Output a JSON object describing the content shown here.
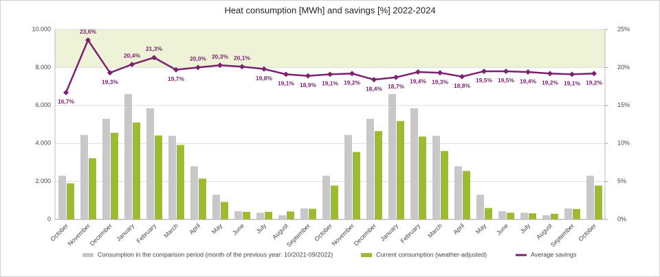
{
  "chart_data": {
    "type": "bar-line",
    "title": "Heat consumption [MWh] and savings [%] 2022-2024",
    "categories": [
      "October",
      "November",
      "December",
      "January",
      "February",
      "March",
      "April",
      "May",
      "June",
      "July",
      "August",
      "September",
      "October",
      "November",
      "December",
      "January",
      "February",
      "March",
      "April",
      "May",
      "June",
      "July",
      "August",
      "September",
      "October"
    ],
    "series": [
      {
        "name": "Consumption in the comparison period (month of the previous year: 10/2021-09/2022)",
        "color": "#c8c8c8",
        "kind": "bar",
        "values": [
          2300,
          4450,
          5300,
          6600,
          5850,
          4400,
          2800,
          1300,
          430,
          350,
          220,
          580,
          2300,
          4450,
          5300,
          6600,
          5850,
          4400,
          2800,
          1300,
          430,
          350,
          220,
          580,
          2300
        ]
      },
      {
        "name": "Current consumption (weather-adjusted)",
        "color": "#9dbb2f",
        "kind": "bar",
        "values": [
          1900,
          3220,
          4560,
          5100,
          4420,
          3920,
          2150,
          920,
          400,
          400,
          420,
          560,
          1780,
          3550,
          4650,
          5180,
          4360,
          3600,
          2550,
          600,
          350,
          320,
          300,
          550,
          1780
        ]
      },
      {
        "name": "Average savings",
        "color": "#7b1f6e",
        "kind": "line",
        "axis": "y2",
        "values": [
          16.7,
          23.6,
          19.3,
          20.4,
          21.3,
          19.7,
          20.0,
          20.3,
          20.1,
          19.8,
          19.1,
          18.9,
          19.1,
          19.2,
          18.4,
          18.7,
          19.4,
          19.3,
          18.8,
          19.5,
          19.5,
          19.4,
          19.2,
          19.1,
          19.2
        ],
        "value_labels": [
          "16,7%",
          "23,6%",
          "19,3%",
          "20,4%",
          "21,3%",
          "19,7%",
          "20,0%",
          "20,3%",
          "20,1%",
          "19,8%",
          "19,1%",
          "18,9%",
          "19,1%",
          "19,2%",
          "18,4%",
          "18,7%",
          "19,4%",
          "19,3%",
          "18,8%",
          "19,5%",
          "19,5%",
          "19,4%",
          "19,2%",
          "19,1%",
          "19,2%"
        ]
      }
    ],
    "ylim": [
      0,
      10000
    ],
    "yticks": [
      0,
      {
        "value": 2000,
        "label": "2.000"
      },
      {
        "value": 4000,
        "label": "4.000"
      },
      {
        "value": 6000,
        "label": "6.000"
      },
      {
        "value": 8000,
        "label": "8.000"
      },
      {
        "value": 10000,
        "label": "10.000"
      }
    ],
    "y2lim": [
      0,
      25
    ],
    "y2ticks": [
      {
        "value": 0,
        "label": "0%"
      },
      {
        "value": 5,
        "label": "5%"
      },
      {
        "value": 10,
        "label": "10%"
      },
      {
        "value": 15,
        "label": "15%"
      },
      {
        "value": 20,
        "label": "20%"
      },
      {
        "value": 25,
        "label": "25%"
      }
    ],
    "highlight_band": [
      8000,
      10000
    ],
    "highlight_color": "#eef3d8",
    "grid": true,
    "legend": "bottom"
  }
}
